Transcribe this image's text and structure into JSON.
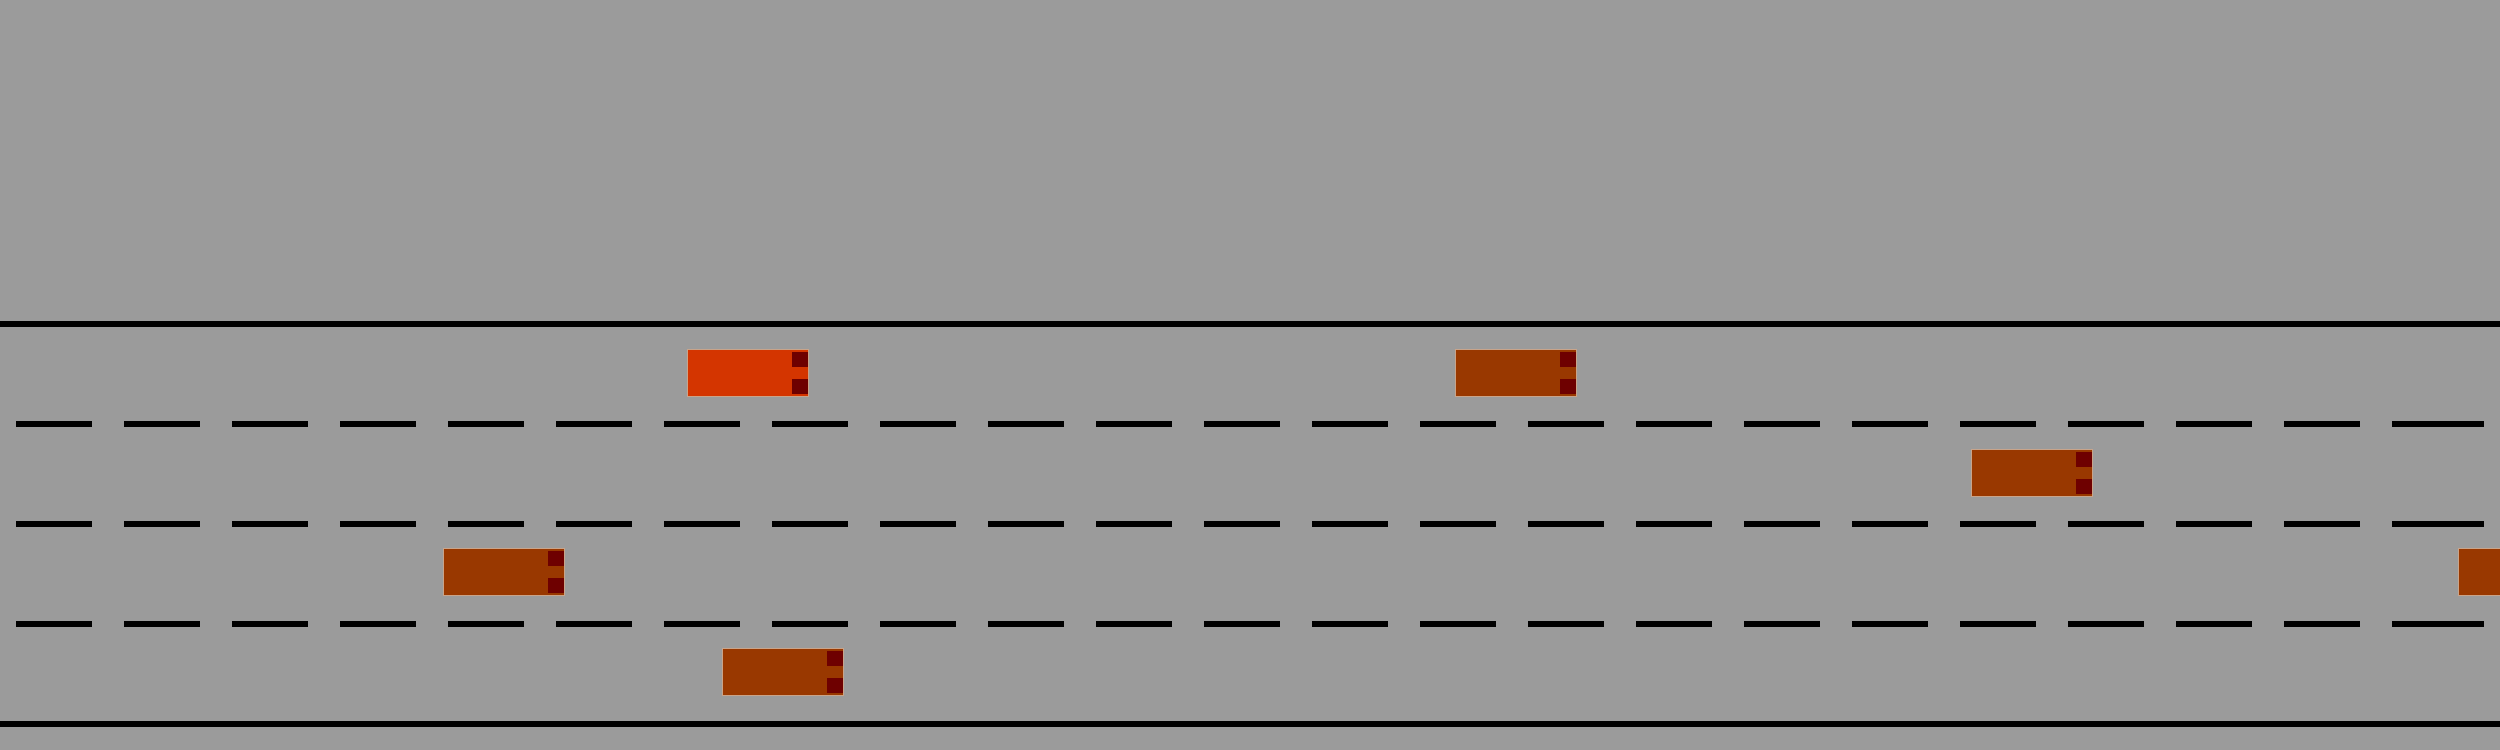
{
  "colors": {
    "road": "#9b9b9b",
    "line": "#000000",
    "player_car": "#d43500",
    "other_car": "#993800",
    "tail_light": "#6e0000"
  },
  "road": {
    "lane_count": 4
  },
  "cars": [
    {
      "role": "player",
      "lane": 1
    },
    {
      "role": "traffic",
      "lane": 1
    },
    {
      "role": "traffic",
      "lane": 2
    },
    {
      "role": "traffic",
      "lane": 3
    },
    {
      "role": "traffic",
      "lane": 3
    },
    {
      "role": "traffic",
      "lane": 4
    }
  ]
}
